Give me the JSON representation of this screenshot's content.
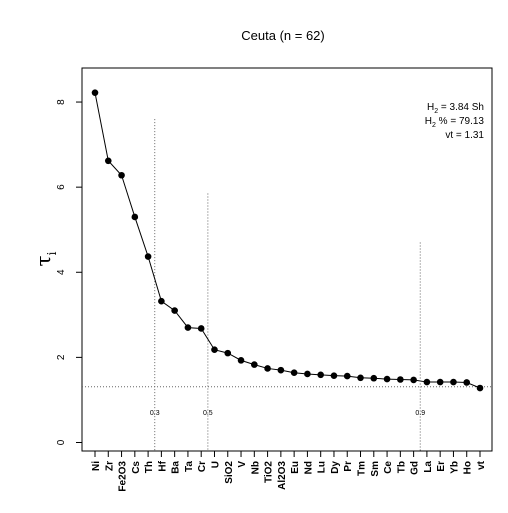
{
  "chart_data": {
    "type": "line",
    "title": "Ceuta (n = 62)",
    "ylabel": "τ",
    "ylabel_subscript": "i",
    "ylim": [
      -0.2,
      8.8
    ],
    "yticks": [
      0,
      2,
      4,
      6,
      8
    ],
    "grid": false,
    "categories": [
      "Ni",
      "Zr",
      "Fe2O3",
      "Cs",
      "Th",
      "Hf",
      "Ba",
      "Ta",
      "Cr",
      "U",
      "SiO2",
      "V",
      "Nb",
      "TiO2",
      "Al2O3",
      "Eu",
      "Nd",
      "Lu",
      "Dy",
      "Pr",
      "Tm",
      "Sm",
      "Ce",
      "Tb",
      "Gd",
      "La",
      "Er",
      "Yb",
      "Ho",
      "vt"
    ],
    "values": [
      8.22,
      6.62,
      6.28,
      5.3,
      4.37,
      3.32,
      3.1,
      2.7,
      2.68,
      2.18,
      2.1,
      1.93,
      1.83,
      1.74,
      1.7,
      1.64,
      1.61,
      1.59,
      1.57,
      1.56,
      1.52,
      1.51,
      1.49,
      1.48,
      1.47,
      1.42,
      1.42,
      1.42,
      1.41,
      1.28
    ],
    "hline": {
      "value": 1.31
    },
    "vlines": [
      {
        "category_index": 4.5,
        "top": 7.6,
        "label": "0.3"
      },
      {
        "category_index": 8.5,
        "top": 5.85,
        "label": "0.5"
      },
      {
        "category_index": 24.5,
        "top": 4.7,
        "label": "0.9"
      }
    ],
    "vline_label_level": 0.65,
    "annotations": [
      {
        "main": "H",
        "sub": "2",
        "rest": " = 3.84 Sh"
      },
      {
        "main": "H",
        "sub": "2",
        "rest": " % = 79.13"
      },
      {
        "main": "",
        "sub": "",
        "rest": "vt = 1.31"
      }
    ]
  }
}
